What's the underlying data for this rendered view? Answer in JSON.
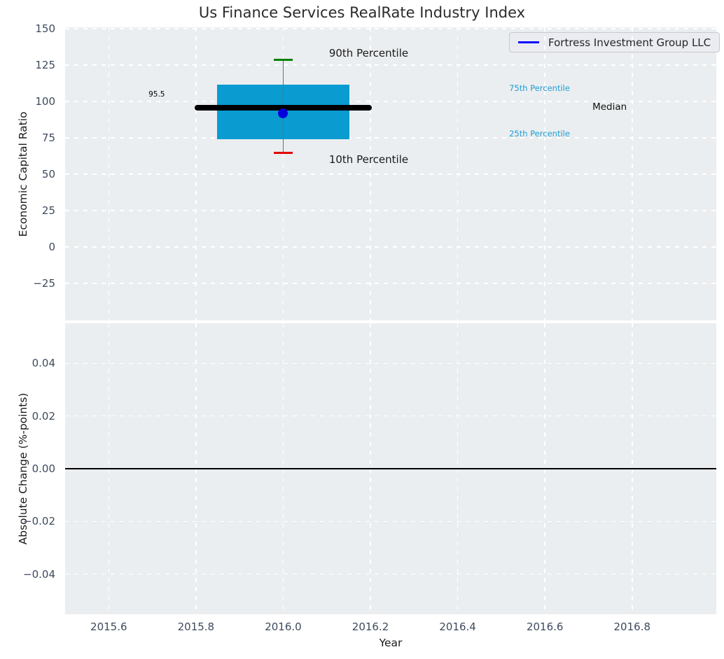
{
  "figure": {
    "title": "Us Finance Services RealRate Industry Index",
    "legend": {
      "label": "Fortress Investment Group LLC",
      "position": "upper right"
    },
    "colors": {
      "axes_bg": "#ebeef0",
      "grid": "#ffffff",
      "tick": "#3d4a5d",
      "label": "#1a1a1a",
      "title": "#2b2b2b",
      "box": "#0a9bd1",
      "percentile_text": "#1f9ed2",
      "green": "#008000",
      "red": "#e50000",
      "line_blue": "#0808ff",
      "point_blue": "#0000dc",
      "whisker": "#6e6e6e",
      "black": "#000000",
      "legend_bg": "#ebecf2",
      "legend_border": "#c9c9c9",
      "legend_text": "#262626"
    }
  },
  "chart_data": [
    {
      "id": "top",
      "type": "box-percentile",
      "ylabel": "Economic Capital Ratio",
      "xlim": [
        2015.5,
        2016.993
      ],
      "ylim": [
        -50.5,
        151
      ],
      "grid": true,
      "show_xtick_labels": false,
      "yticks": [
        {
          "v": 150,
          "label": "150"
        },
        {
          "v": 125,
          "label": "125"
        },
        {
          "v": 100,
          "label": "100"
        },
        {
          "v": 75,
          "label": "75"
        },
        {
          "v": 50,
          "label": "50"
        },
        {
          "v": 25,
          "label": "25"
        },
        {
          "v": 0,
          "label": "0"
        },
        {
          "v": -25,
          "label": "−25"
        }
      ],
      "xticks": [
        {
          "v": 2015.6,
          "label": "2015.6"
        },
        {
          "v": 2015.8,
          "label": "2015.8"
        },
        {
          "v": 2016.0,
          "label": "2016.0"
        },
        {
          "v": 2016.2,
          "label": "2016.2"
        },
        {
          "v": 2016.4,
          "label": "2016.4"
        },
        {
          "v": 2016.6,
          "label": "2016.6"
        },
        {
          "v": 2016.8,
          "label": "2016.8"
        }
      ],
      "box": {
        "x": 2016.0,
        "p90": 128.5,
        "p75": 111.5,
        "median": 95.5,
        "p25": 74.0,
        "p10": 64.5,
        "box_halfwidth": 0.151,
        "median_halfwidth": 0.203,
        "cap_halfwidth": 0.021
      },
      "series": [
        {
          "name": "Fortress Investment Group LLC",
          "points": [
            {
              "x": 2016.0,
              "y": 92.0
            }
          ]
        }
      ],
      "annotations": [
        {
          "text": "90th Percentile",
          "x": 2016.105,
          "y": 133,
          "color": "#1a1a1a",
          "size": 15,
          "align": "left"
        },
        {
          "text": "10th Percentile",
          "x": 2016.105,
          "y": 60,
          "color": "#1a1a1a",
          "size": 15,
          "align": "left"
        },
        {
          "text": "95.5",
          "x": 2015.71,
          "y": 105,
          "color": "#000000",
          "size": 10.5,
          "align": "center"
        },
        {
          "text": "75th Percentile",
          "x": 2016.518,
          "y": 109,
          "color": "#1f9ed2",
          "size": 11.5,
          "align": "left"
        },
        {
          "text": "Median",
          "x": 2016.709,
          "y": 96,
          "color": "#111111",
          "size": 13.5,
          "align": "left"
        },
        {
          "text": "25th Percentile",
          "x": 2016.518,
          "y": 78,
          "color": "#1f9ed2",
          "size": 11.5,
          "align": "left"
        }
      ]
    },
    {
      "id": "bottom",
      "type": "line",
      "ylabel": "Absolute Change (%-points)",
      "xlabel": "Year",
      "xlim": [
        2015.5,
        2016.993
      ],
      "ylim": [
        -0.0552,
        0.0552
      ],
      "grid": true,
      "show_xtick_labels": true,
      "zero_line": 0.0,
      "yticks": [
        {
          "v": 0.04,
          "label": "0.04"
        },
        {
          "v": 0.02,
          "label": "0.02"
        },
        {
          "v": 0,
          "label": "0.00"
        },
        {
          "v": -0.02,
          "label": "−0.02"
        },
        {
          "v": -0.04,
          "label": "−0.04"
        }
      ],
      "xticks": [
        {
          "v": 2015.6,
          "label": "2015.6"
        },
        {
          "v": 2015.8,
          "label": "2015.8"
        },
        {
          "v": 2016.0,
          "label": "2016.0"
        },
        {
          "v": 2016.2,
          "label": "2016.2"
        },
        {
          "v": 2016.4,
          "label": "2016.4"
        },
        {
          "v": 2016.6,
          "label": "2016.6"
        },
        {
          "v": 2016.8,
          "label": "2016.8"
        }
      ],
      "series": []
    }
  ]
}
